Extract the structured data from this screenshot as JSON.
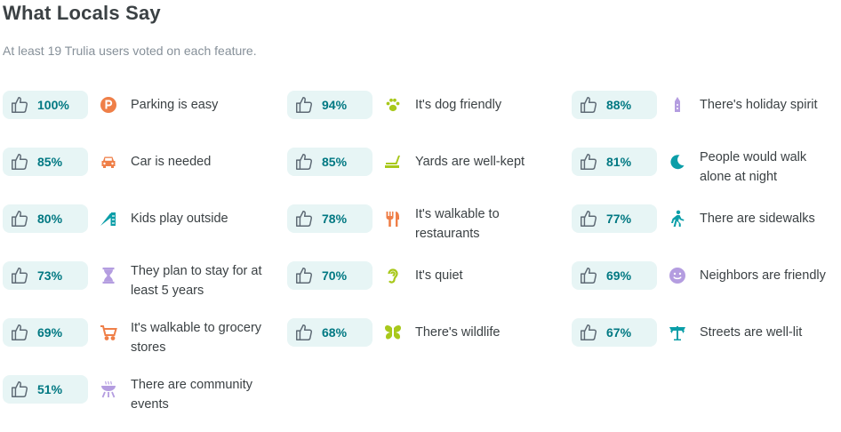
{
  "header": {
    "title": "What Locals Say",
    "subtitle": "At least 19 Trulia users voted on each feature."
  },
  "features": [
    {
      "percent": "100%",
      "label": "Parking is easy",
      "icon": "parking-icon",
      "color": "#ef7f48"
    },
    {
      "percent": "94%",
      "label": "It's dog friendly",
      "icon": "paw-icon",
      "color": "#a8c81b"
    },
    {
      "percent": "88%",
      "label": "There's holiday spirit",
      "icon": "holiday-icon",
      "color": "#b49de0"
    },
    {
      "percent": "85%",
      "label": "Car is needed",
      "icon": "car-icon",
      "color": "#ef7f48"
    },
    {
      "percent": "85%",
      "label": "Yards are well-kept",
      "icon": "lawnmower-icon",
      "color": "#a8c81b"
    },
    {
      "percent": "81%",
      "label": "People would walk alone at night",
      "icon": "moon-icon",
      "color": "#0b9ea8"
    },
    {
      "percent": "80%",
      "label": "Kids play outside",
      "icon": "slide-icon",
      "color": "#0b9ea8"
    },
    {
      "percent": "78%",
      "label": "It's walkable to restaurants",
      "icon": "utensils-icon",
      "color": "#ef7f48"
    },
    {
      "percent": "77%",
      "label": "There are sidewalks",
      "icon": "walking-person-icon",
      "color": "#0b9ea8"
    },
    {
      "percent": "73%",
      "label": "They plan to stay for at least 5 years",
      "icon": "hourglass-icon",
      "color": "#b49de0"
    },
    {
      "percent": "70%",
      "label": "It's quiet",
      "icon": "ear-icon",
      "color": "#a8c81b"
    },
    {
      "percent": "69%",
      "label": "Neighbors are friendly",
      "icon": "smile-icon",
      "color": "#b49de0"
    },
    {
      "percent": "69%",
      "label": "It's walkable to grocery stores",
      "icon": "cart-icon",
      "color": "#ef7f48"
    },
    {
      "percent": "68%",
      "label": "There's wildlife",
      "icon": "butterfly-icon",
      "color": "#a8c81b"
    },
    {
      "percent": "67%",
      "label": "Streets are well-lit",
      "icon": "streetlight-icon",
      "color": "#0b9ea8"
    },
    {
      "percent": "51%",
      "label": "There are community events",
      "icon": "grill-icon",
      "color": "#b49de0"
    }
  ]
}
